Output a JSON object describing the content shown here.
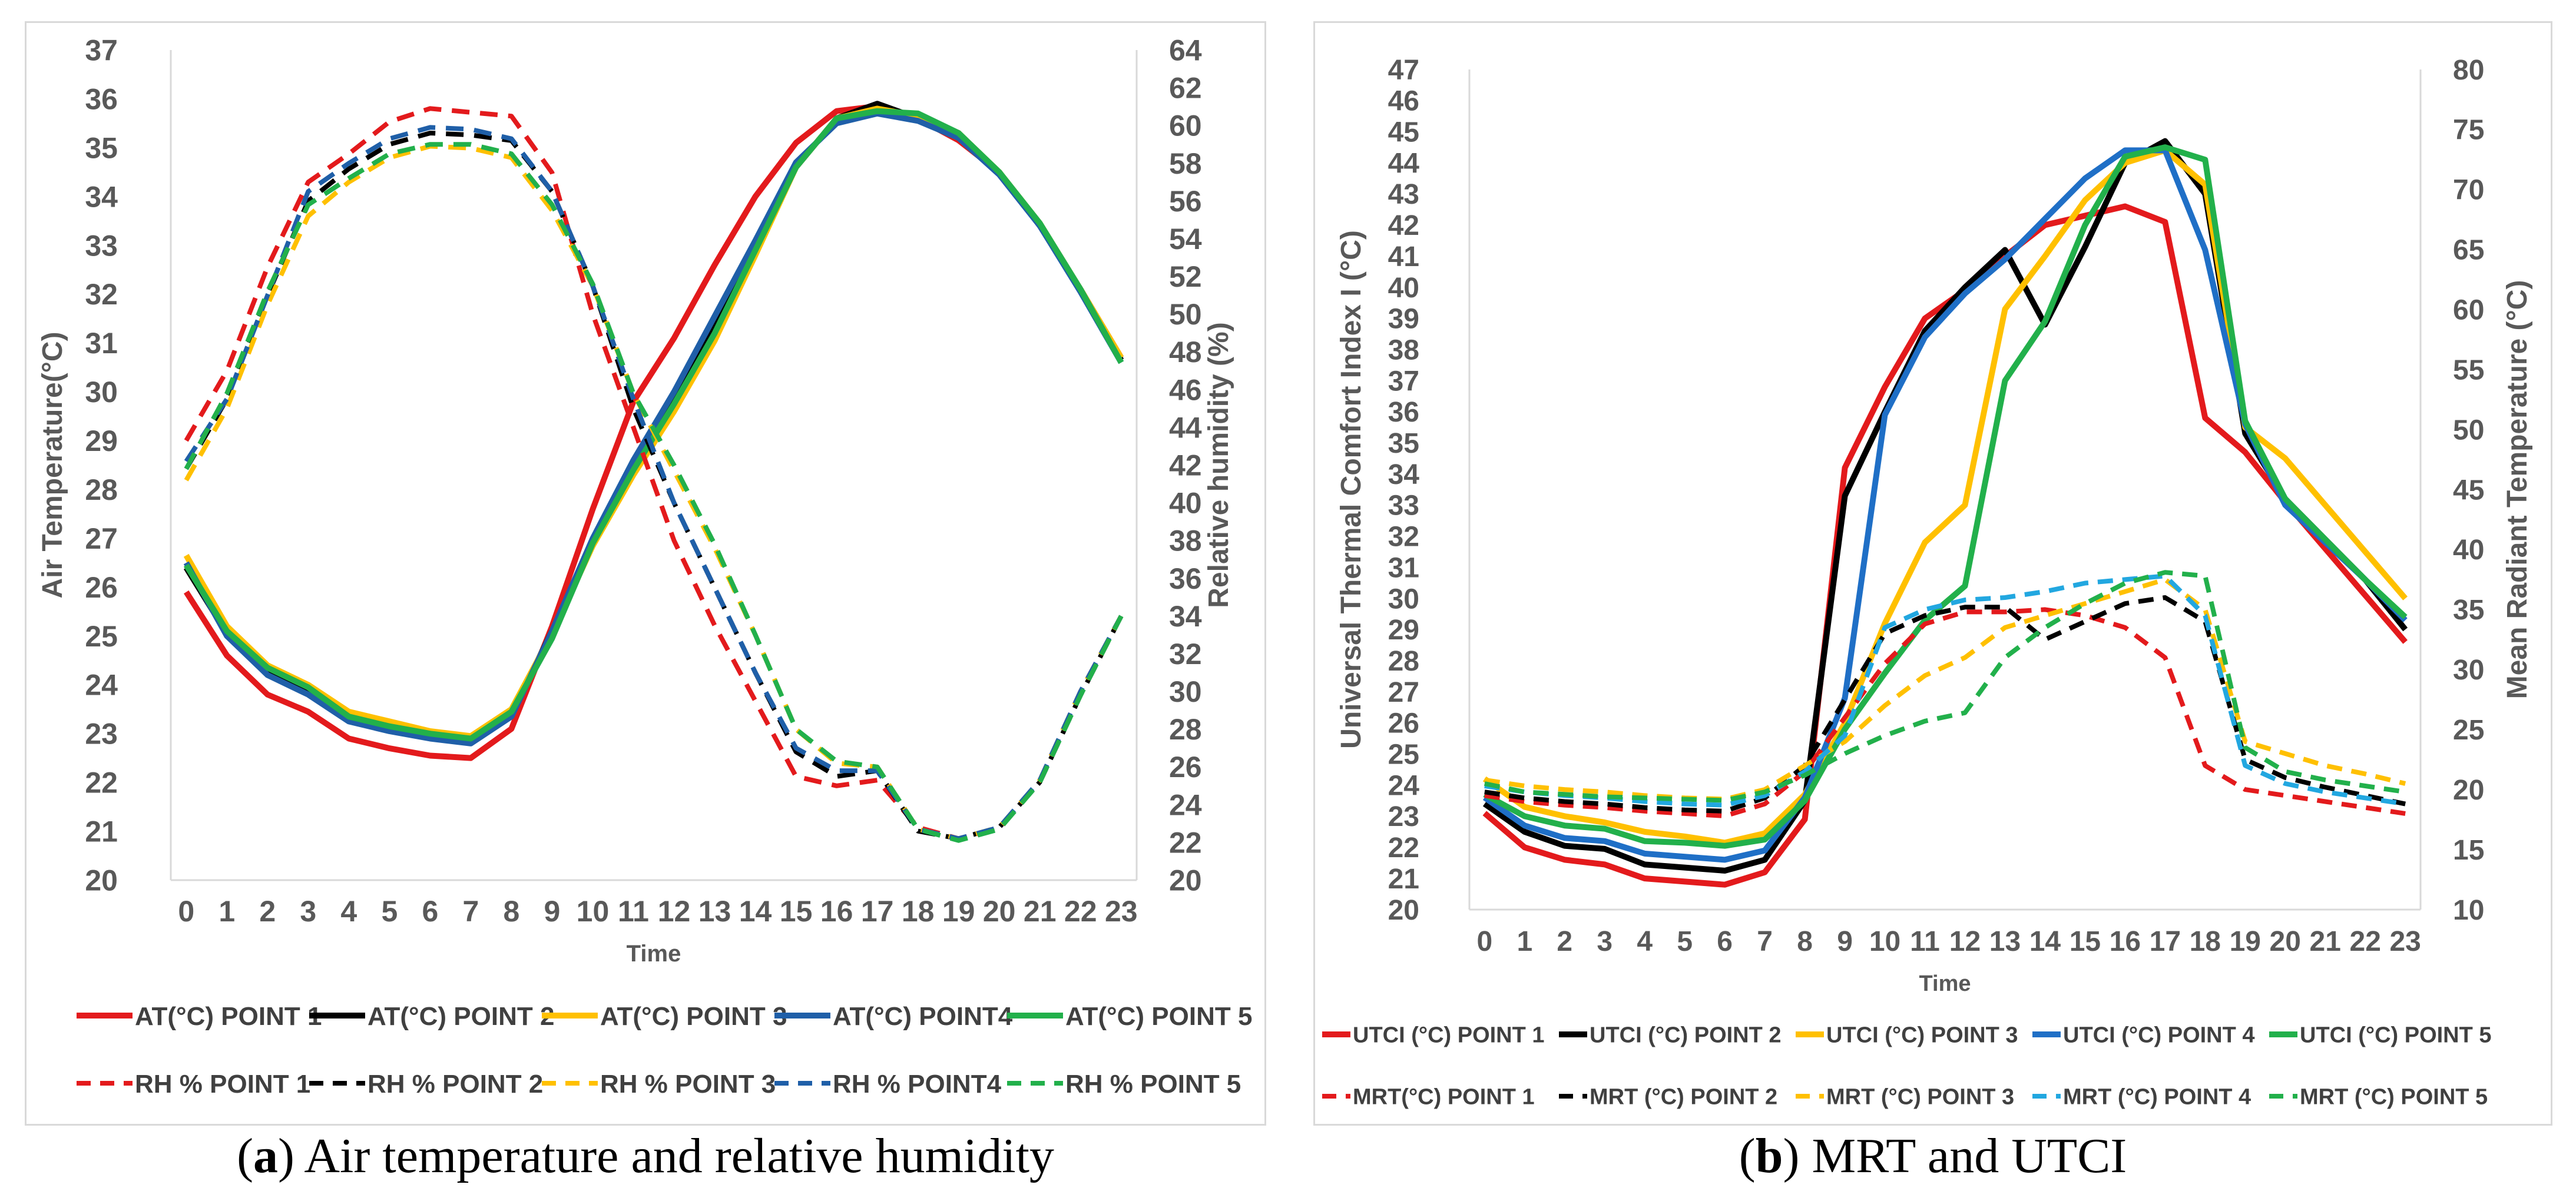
{
  "captions": {
    "a_letter": "a",
    "a_text": " Air temperature and relative humidity",
    "b_letter": "b",
    "b_text": " MRT and UTCI"
  },
  "chart_data": [
    {
      "type": "line",
      "panel": "a",
      "x": [
        0,
        1,
        2,
        3,
        4,
        5,
        6,
        7,
        8,
        9,
        10,
        11,
        12,
        13,
        14,
        15,
        16,
        17,
        18,
        19,
        20,
        21,
        22,
        23
      ],
      "xlabel": "Time",
      "ylabel": "Air Temperature(°C)",
      "y2label": "Relative humidity (%)",
      "ylim": [
        20,
        37
      ],
      "y2lim": [
        20,
        64
      ],
      "yticks": [
        20,
        21,
        22,
        23,
        24,
        25,
        26,
        27,
        28,
        29,
        30,
        31,
        32,
        33,
        34,
        35,
        36,
        37
      ],
      "y2ticks": [
        20,
        22,
        24,
        26,
        28,
        30,
        32,
        34,
        36,
        38,
        40,
        42,
        44,
        46,
        48,
        50,
        52,
        54,
        56,
        58,
        60,
        62,
        64
      ],
      "series": [
        {
          "name": "AT(°C) POINT 1",
          "axis": "left",
          "color": "#e31a1c",
          "dash": false,
          "values": [
            25.9,
            24.6,
            23.8,
            23.45,
            22.9,
            22.7,
            22.55,
            22.5,
            23.1,
            25.2,
            27.6,
            29.8,
            31.1,
            32.6,
            34.0,
            35.1,
            35.75,
            35.85,
            35.6,
            35.15,
            34.5,
            33.4,
            32.1,
            30.7
          ]
        },
        {
          "name": "AT(°C) POINT 2",
          "axis": "left",
          "color": "#000000",
          "dash": false,
          "values": [
            26.4,
            25.05,
            24.25,
            23.85,
            23.3,
            23.1,
            22.95,
            22.85,
            23.4,
            25.1,
            26.95,
            28.5,
            29.9,
            31.4,
            32.95,
            34.6,
            35.6,
            35.9,
            35.6,
            35.2,
            34.5,
            33.4,
            32.1,
            30.65
          ]
        },
        {
          "name": "AT(°C) POINT 3",
          "axis": "left",
          "color": "#ffc000",
          "dash": false,
          "values": [
            26.65,
            25.2,
            24.4,
            24.0,
            23.45,
            23.25,
            23.05,
            22.95,
            23.5,
            25.05,
            26.85,
            28.3,
            29.6,
            31.05,
            32.8,
            34.6,
            35.6,
            35.8,
            35.65,
            35.3,
            34.5,
            33.45,
            32.1,
            30.7
          ]
        },
        {
          "name": "AT(°C) POINT4",
          "axis": "left",
          "color": "#1f5fa8",
          "dash": false,
          "values": [
            26.5,
            25.0,
            24.2,
            23.8,
            23.25,
            23.05,
            22.9,
            22.8,
            23.35,
            25.1,
            27.0,
            28.6,
            30.0,
            31.55,
            33.1,
            34.7,
            35.5,
            35.7,
            35.55,
            35.2,
            34.45,
            33.4,
            32.05,
            30.6
          ]
        },
        {
          "name": "AT(°C) POINT 5",
          "axis": "left",
          "color": "#22b04b",
          "dash": false,
          "values": [
            26.45,
            25.1,
            24.35,
            23.95,
            23.35,
            23.15,
            23.0,
            22.9,
            23.45,
            24.95,
            26.9,
            28.4,
            29.75,
            31.2,
            32.9,
            34.6,
            35.6,
            35.75,
            35.7,
            35.3,
            34.5,
            33.45,
            32.1,
            30.6
          ]
        },
        {
          "name": "RH % POINT 1",
          "axis": "right",
          "color": "#e31a1c",
          "dash": true,
          "values": [
            43.3,
            47.0,
            52.5,
            57.0,
            58.5,
            60.2,
            60.9,
            60.7,
            60.5,
            57.5,
            50.0,
            44.0,
            38.0,
            33.5,
            29.5,
            25.5,
            25.0,
            25.3,
            22.8,
            22.2,
            22.7,
            25.3,
            30.0,
            34.0
          ]
        },
        {
          "name": "RH % POINT 2",
          "axis": "right",
          "color": "#000000",
          "dash": true,
          "values": [
            41.8,
            45.5,
            51.0,
            56.0,
            57.7,
            59.0,
            59.6,
            59.5,
            59.2,
            56.5,
            51.5,
            45.0,
            40.0,
            35.5,
            31.0,
            26.8,
            25.5,
            25.8,
            22.6,
            22.2,
            22.8,
            25.2,
            29.8,
            34.0
          ]
        },
        {
          "name": "RH % POINT 3",
          "axis": "right",
          "color": "#ffc000",
          "dash": true,
          "values": [
            41.2,
            45.0,
            50.5,
            55.2,
            57.0,
            58.3,
            58.9,
            58.8,
            58.3,
            55.5,
            51.5,
            45.8,
            41.7,
            37.6,
            33.0,
            28.0,
            26.2,
            26.0,
            22.7,
            22.2,
            22.8,
            25.3,
            30.0,
            34.0
          ]
        },
        {
          "name": "RH % POINT4",
          "axis": "right",
          "color": "#1f5fa8",
          "dash": true,
          "values": [
            42.2,
            45.5,
            51.0,
            56.5,
            58.0,
            59.3,
            59.9,
            59.8,
            59.3,
            56.5,
            51.5,
            45.5,
            40.0,
            35.5,
            31.0,
            27.0,
            25.8,
            25.8,
            22.7,
            22.2,
            22.8,
            25.3,
            30.0,
            34.0
          ]
        },
        {
          "name": "RH % POINT 5",
          "axis": "right",
          "color": "#22b04b",
          "dash": true,
          "values": [
            41.8,
            45.8,
            51.2,
            55.8,
            57.2,
            58.5,
            59.0,
            59.0,
            58.5,
            55.8,
            51.6,
            45.8,
            42.0,
            37.8,
            33.0,
            28.0,
            26.3,
            26.0,
            22.7,
            22.1,
            22.7,
            25.2,
            29.8,
            34.0
          ]
        }
      ]
    },
    {
      "type": "line",
      "panel": "b",
      "x": [
        0,
        1,
        2,
        3,
        4,
        5,
        6,
        7,
        8,
        9,
        10,
        11,
        12,
        13,
        14,
        15,
        16,
        17,
        18,
        19,
        20,
        21,
        22,
        23
      ],
      "xlabel": "Time",
      "ylabel": "Universal Thermal Comfort Index I (°C)",
      "y2label": "Mean Radiant Temperature (°C)",
      "ylim": [
        20,
        47
      ],
      "y2lim": [
        10,
        80
      ],
      "yticks": [
        20,
        21,
        22,
        23,
        24,
        25,
        26,
        27,
        28,
        29,
        30,
        31,
        32,
        33,
        34,
        35,
        36,
        37,
        38,
        39,
        40,
        41,
        42,
        43,
        44,
        45,
        46,
        47
      ],
      "y2ticks": [
        10,
        15,
        20,
        25,
        30,
        35,
        40,
        45,
        50,
        55,
        60,
        65,
        70,
        75,
        80
      ],
      "series": [
        {
          "name": "UTCI (°C) POINT 1",
          "axis": "left",
          "color": "#e31a1c",
          "dash": false,
          "values": [
            23.1,
            22.0,
            21.6,
            21.45,
            21.0,
            20.9,
            20.8,
            21.2,
            22.9,
            34.2,
            36.8,
            39.0,
            39.9,
            41.0,
            42.0,
            42.3,
            42.6,
            42.1,
            35.8,
            34.7,
            33.1,
            31.6,
            30.1,
            28.6
          ]
        },
        {
          "name": "UTCI  (°C) POINT 2",
          "axis": "left",
          "color": "#000000",
          "dash": false,
          "values": [
            23.4,
            22.5,
            22.05,
            21.95,
            21.45,
            21.35,
            21.25,
            21.6,
            23.5,
            33.3,
            36.0,
            38.6,
            40.0,
            41.2,
            38.8,
            41.3,
            44.0,
            44.7,
            43.0,
            35.3,
            33.2,
            31.9,
            30.6,
            29.0
          ]
        },
        {
          "name": "UTCI  (°C) POINT 3",
          "axis": "left",
          "color": "#ffc000",
          "dash": false,
          "values": [
            24.2,
            23.3,
            23.0,
            22.8,
            22.5,
            22.35,
            22.15,
            22.45,
            23.7,
            26.0,
            29.2,
            31.8,
            33.0,
            39.3,
            41.0,
            42.8,
            44.0,
            44.4,
            43.3,
            35.5,
            34.5,
            33.0,
            31.5,
            30.0
          ]
        },
        {
          "name": "UTCI  (°C) POINT 4",
          "axis": "left",
          "color": "#1f6fc6",
          "dash": false,
          "values": [
            23.6,
            22.7,
            22.3,
            22.2,
            21.8,
            21.7,
            21.6,
            21.9,
            23.6,
            26.8,
            35.9,
            38.4,
            39.8,
            40.9,
            42.2,
            43.5,
            44.4,
            44.4,
            41.2,
            35.6,
            33.0,
            31.8,
            30.6,
            29.3
          ]
        },
        {
          "name": "UTCI  (°C) POINT 5",
          "axis": "left",
          "color": "#22b04b",
          "dash": false,
          "values": [
            23.7,
            23.0,
            22.7,
            22.6,
            22.2,
            22.15,
            22.05,
            22.25,
            23.5,
            25.8,
            27.6,
            29.3,
            30.4,
            37.0,
            38.9,
            42.0,
            44.2,
            44.5,
            44.1,
            35.7,
            33.2,
            31.9,
            30.6,
            29.4
          ]
        },
        {
          "name": "MRT(°C) POINT 1",
          "axis": "right",
          "color": "#e31a1c",
          "dash": true,
          "values": [
            19.5,
            19.0,
            18.7,
            18.5,
            18.2,
            18.0,
            17.8,
            18.8,
            21.5,
            26.0,
            30.5,
            33.8,
            34.8,
            34.8,
            35.0,
            34.5,
            33.5,
            31.0,
            22.0,
            20.0,
            19.5,
            19.0,
            18.5,
            18.0
          ]
        },
        {
          "name": "MRT (°C) POINT 2",
          "axis": "right",
          "color": "#000000",
          "dash": true,
          "values": [
            19.8,
            19.3,
            19.0,
            18.8,
            18.5,
            18.3,
            18.2,
            19.3,
            22.0,
            27.5,
            33.0,
            34.5,
            35.2,
            35.2,
            32.5,
            34.0,
            35.5,
            36.0,
            34.0,
            22.5,
            21.0,
            20.2,
            19.5,
            18.8
          ]
        },
        {
          "name": "MRT (°C) POINT 3",
          "axis": "right",
          "color": "#ffc000",
          "dash": true,
          "values": [
            20.8,
            20.3,
            20.0,
            19.8,
            19.5,
            19.3,
            19.2,
            20.0,
            22.0,
            24.0,
            27.0,
            29.5,
            31.0,
            33.5,
            34.5,
            35.5,
            36.5,
            37.5,
            35.0,
            24.0,
            23.0,
            22.0,
            21.3,
            20.5
          ]
        },
        {
          "name": "MRT (°C) POINT 4",
          "axis": "right",
          "color": "#22a7e0",
          "dash": true,
          "values": [
            20.3,
            19.8,
            19.5,
            19.3,
            19.0,
            18.8,
            18.7,
            19.5,
            21.5,
            24.5,
            33.5,
            35.0,
            35.8,
            36.0,
            36.5,
            37.2,
            37.5,
            37.8,
            34.5,
            22.0,
            20.5,
            19.8,
            19.3,
            18.8
          ]
        },
        {
          "name": "MRT (°C) POINT 5",
          "axis": "right",
          "color": "#22b04b",
          "dash": true,
          "values": [
            20.5,
            19.8,
            19.6,
            19.4,
            19.3,
            19.2,
            19.1,
            19.8,
            21.2,
            23.0,
            24.5,
            25.7,
            26.4,
            31.0,
            33.5,
            35.5,
            37.2,
            38.1,
            37.8,
            23.5,
            21.5,
            20.8,
            20.3,
            19.8
          ]
        }
      ]
    }
  ]
}
